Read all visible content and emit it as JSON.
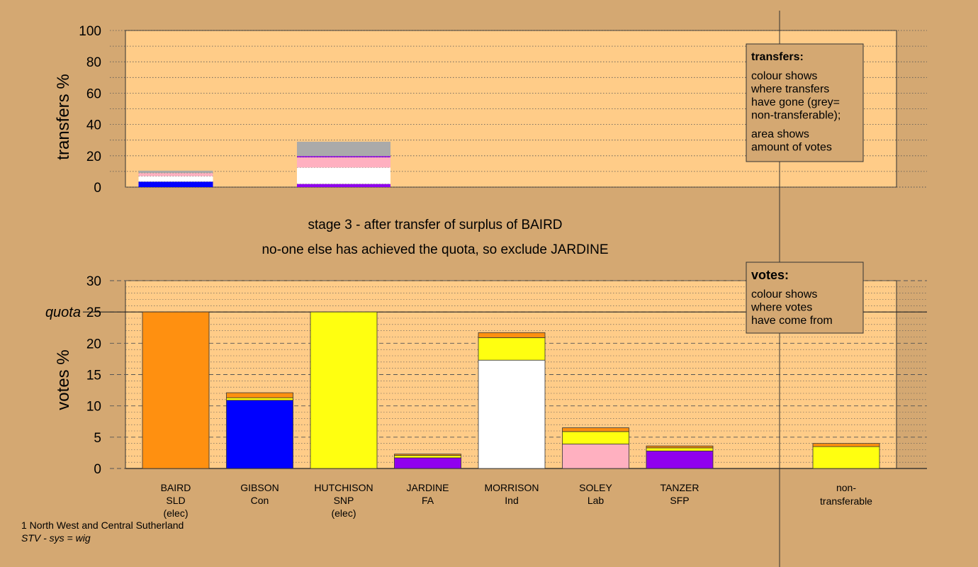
{
  "colors": {
    "background": "#d4a872",
    "plot_area": "#ffcc88",
    "legend_box": "#d4a872",
    "line": "#333333",
    "SLD": "#ff9010",
    "Con": "#0000ff",
    "SNP": "#ffff10",
    "FA": "#9000ee",
    "Ind": "#ffffff",
    "Lab": "#ffb0c0",
    "SFP": "#9000ee",
    "nontransferable": "#aaaaaa"
  },
  "titles": {
    "stage": "stage 3 - after transfer of surplus of BAIRD",
    "action": "no-one else has achieved the quota, so exclude JARDINE"
  },
  "footer": {
    "line1": "1 North West and Central Sutherland",
    "line2": "STV - sys = wig"
  },
  "legend_transfers": {
    "title": "transfers:",
    "lines": [
      "colour shows",
      "where transfers",
      "have gone (grey=",
      "non-transferable);",
      "",
      "area shows",
      "amount of votes"
    ]
  },
  "legend_votes": {
    "title": "votes:",
    "lines": [
      "colour shows",
      "where votes",
      "have come from"
    ]
  },
  "chart_data": [
    {
      "type": "bar",
      "stacked": true,
      "ylabel": "transfers %",
      "ylim": [
        0,
        100
      ],
      "yticks": [
        0,
        20,
        40,
        60,
        80,
        100
      ],
      "bars": [
        {
          "position": 0,
          "segments": [
            {
              "party": "Con",
              "value": 3.5
            },
            {
              "party": "Ind",
              "value": 3.5
            },
            {
              "party": "Lab",
              "value": 2.0
            },
            {
              "party": "nontransferable",
              "value": 1.5
            }
          ]
        },
        {
          "position": 2,
          "segments": [
            {
              "party": "FA",
              "value": 2.0
            },
            {
              "party": "Ind",
              "value": 10.5
            },
            {
              "party": "Lab",
              "value": 6.5
            },
            {
              "party": "FA",
              "value": 0.8
            },
            {
              "party": "nontransferable",
              "value": 9.2
            }
          ]
        }
      ]
    },
    {
      "type": "bar",
      "stacked": true,
      "ylabel": "votes %",
      "ylim": [
        0,
        30
      ],
      "yticks": [
        0,
        5,
        10,
        15,
        20,
        25,
        30
      ],
      "quota": 25,
      "quota_label": "quota",
      "categories": [
        {
          "name": "BAIRD",
          "party": "SLD",
          "note": "(elec)"
        },
        {
          "name": "GIBSON",
          "party": "Con",
          "note": ""
        },
        {
          "name": "HUTCHISON",
          "party": "SNP",
          "note": "(elec)"
        },
        {
          "name": "JARDINE",
          "party": "FA",
          "note": ""
        },
        {
          "name": "MORRISON",
          "party": "Ind",
          "note": ""
        },
        {
          "name": "SOLEY",
          "party": "Lab",
          "note": ""
        },
        {
          "name": "TANZER",
          "party": "SFP",
          "note": ""
        }
      ],
      "nontransferable_label": [
        "non-",
        "transferable"
      ],
      "stacks": [
        [
          {
            "party": "SLD",
            "value": 25.0
          }
        ],
        [
          {
            "party": "Con",
            "value": 10.9
          },
          {
            "party": "SNP",
            "value": 0.4
          },
          {
            "party": "SLD",
            "value": 0.8
          }
        ],
        [
          {
            "party": "SNP",
            "value": 25.0
          }
        ],
        [
          {
            "party": "FA",
            "value": 1.7
          },
          {
            "party": "SNP",
            "value": 0.4
          },
          {
            "party": "SLD",
            "value": 0.2
          }
        ],
        [
          {
            "party": "Ind",
            "value": 17.3
          },
          {
            "party": "SNP",
            "value": 3.6
          },
          {
            "party": "SLD",
            "value": 0.8
          }
        ],
        [
          {
            "party": "Lab",
            "value": 3.9
          },
          {
            "party": "SNP",
            "value": 2.0
          },
          {
            "party": "SLD",
            "value": 0.6
          }
        ],
        [
          {
            "party": "SFP",
            "value": 2.8
          },
          {
            "party": "SNP",
            "value": 0.5
          },
          {
            "party": "SLD",
            "value": 0.3
          }
        ],
        [
          {
            "party": "SNP",
            "value": 3.5
          },
          {
            "party": "SLD",
            "value": 0.5
          }
        ]
      ]
    }
  ]
}
